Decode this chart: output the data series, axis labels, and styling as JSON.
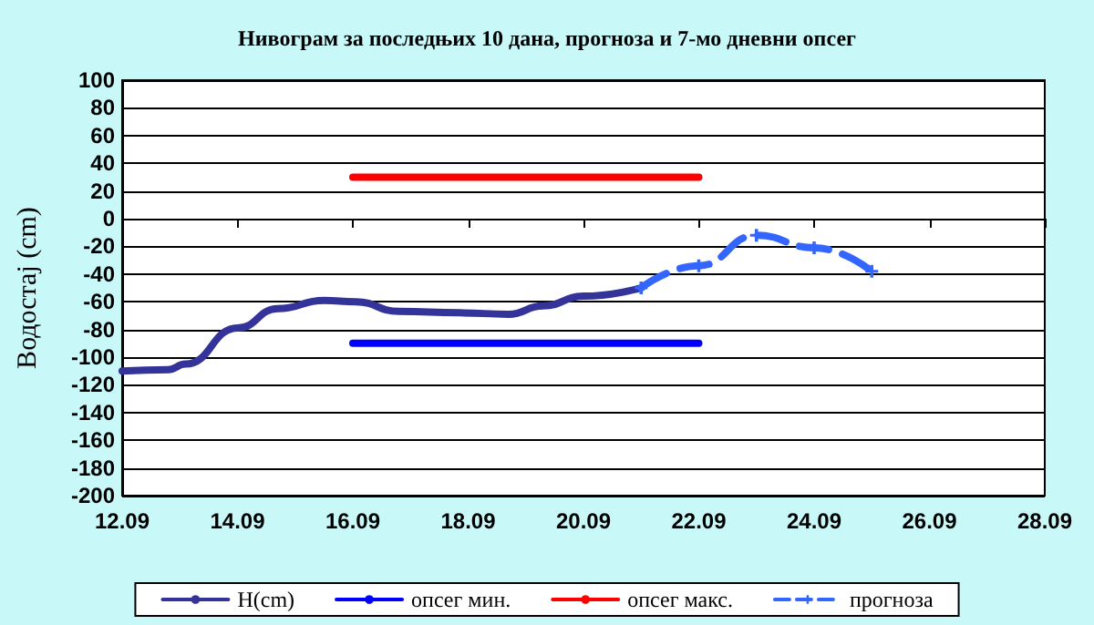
{
  "chart_data": {
    "type": "line",
    "title": "Нивограм за последњих 10 дана, прогноза и 7-мо дневни опсег",
    "ylabel": "Водостај (cm)",
    "xlim": [
      "--09-12",
      "--09-28"
    ],
    "xticks": [
      {
        "value": "--09-12",
        "label": "12.09"
      },
      {
        "value": "--09-14",
        "label": "14.09"
      },
      {
        "value": "--09-16",
        "label": "16.09"
      },
      {
        "value": "--09-18",
        "label": "18.09"
      },
      {
        "value": "--09-20",
        "label": "20.09"
      },
      {
        "value": "--09-22",
        "label": "22.09"
      },
      {
        "value": "--09-24",
        "label": "24.09"
      },
      {
        "value": "--09-26",
        "label": "26.09"
      },
      {
        "value": "--09-28",
        "label": "28.09"
      }
    ],
    "ylim": [
      -200,
      100
    ],
    "yticks": [
      -200,
      -180,
      -160,
      -140,
      -120,
      -100,
      -80,
      -60,
      -40,
      -20,
      0,
      20,
      40,
      60,
      80,
      100
    ],
    "grid": "y",
    "legend": "bottom",
    "series": [
      {
        "name": "H(cm)",
        "color": "#333399",
        "x": [
          "--09-12T00:00",
          "--09-12T19:12",
          "--09-13T02:24",
          "--09-14T00:00",
          "--09-14T16:48",
          "--09-15T12:00",
          "--09-16T01:12",
          "--09-16T19:12",
          "--09-17T20:24",
          "--09-18T16:48",
          "--09-19T07:12",
          "--09-20T00:00",
          "--09-21T00:00"
        ],
        "values": [
          -110,
          -109,
          -105,
          -79,
          -65,
          -59,
          -60,
          -67,
          -68,
          -69,
          -63,
          -56,
          -50
        ]
      },
      {
        "name": "опсег мин.",
        "color": "#0000ff",
        "x": [
          "--09-16",
          "--09-22"
        ],
        "values": [
          -90,
          -90
        ]
      },
      {
        "name": "опсег макс.",
        "color": "#ff0000",
        "x": [
          "--09-16",
          "--09-22"
        ],
        "values": [
          30,
          30
        ]
      },
      {
        "name": "прогноза",
        "color": "#3366ff",
        "line_style": "dashed",
        "marker": "cross",
        "x": [
          "--09-21",
          "--09-22",
          "--09-23",
          "--09-24",
          "--09-25"
        ],
        "values": [
          -50,
          -34,
          -12,
          -21,
          -38
        ]
      }
    ]
  }
}
